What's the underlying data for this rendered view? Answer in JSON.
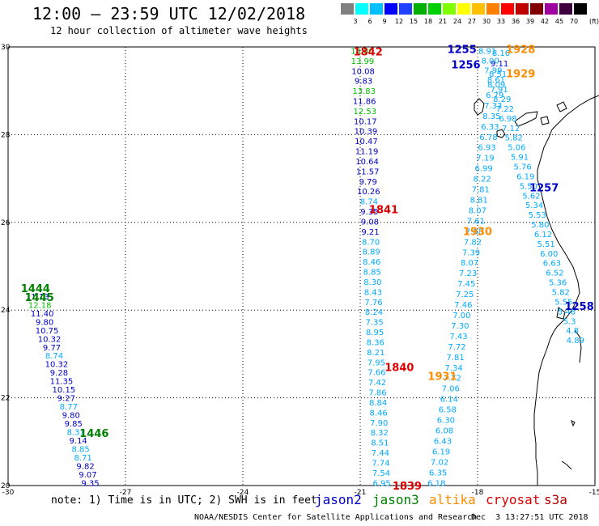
{
  "header": {
    "title": "12:00 – 23:59 UTC 12/02/2018",
    "subtitle": "12 hour collection of altimeter wave heights"
  },
  "scale": {
    "unit": "(ft)",
    "ticks": [
      "3",
      "6",
      "9",
      "12",
      "15",
      "18",
      "21",
      "24",
      "27",
      "30",
      "33",
      "36",
      "39",
      "42",
      "45",
      "70"
    ],
    "colors": [
      "#808080",
      "#00ffff",
      "#00c0ff",
      "#0000ff",
      "#2040ff",
      "#00b000",
      "#00d000",
      "#80ff00",
      "#ffff00",
      "#ffc000",
      "#ff8000",
      "#ff0000",
      "#c00000",
      "#800000",
      "#a000a0",
      "#400040",
      "#000000"
    ]
  },
  "axes": {
    "x_ticks": [
      "-30",
      "-27",
      "-24",
      "-21",
      "-18",
      "-15"
    ],
    "y_ticks": [
      "30",
      "28",
      "26",
      "24",
      "22",
      "20"
    ]
  },
  "chart_data": {
    "type": "map",
    "lon_range": [
      -30,
      -15
    ],
    "lat_range": [
      20,
      30
    ],
    "grid": "dotted",
    "colors": {
      "jason2": "#0000c8",
      "jason3": "#008000",
      "altika": "#ff8c00",
      "cryosat": "#dc0000",
      "s3a": "#b40000",
      "swh_low": "#00aaff",
      "swh_mid": "#0000c8",
      "swh_high": "#00c000"
    },
    "pass_labels": [
      {
        "text": "1842",
        "lon": -20.8,
        "lat": 29.9,
        "sat": "cryosat"
      },
      {
        "text": "1841",
        "lon": -20.4,
        "lat": 26.3,
        "sat": "cryosat"
      },
      {
        "text": "1840",
        "lon": -20.0,
        "lat": 22.7,
        "sat": "cryosat"
      },
      {
        "text": "1839",
        "lon": -19.8,
        "lat": 20.0,
        "sat": "cryosat"
      },
      {
        "text": "1255",
        "lon": -18.4,
        "lat": 29.95,
        "sat": "jason2"
      },
      {
        "text": "1256",
        "lon": -18.3,
        "lat": 29.6,
        "sat": "jason2"
      },
      {
        "text": "1257",
        "lon": -16.3,
        "lat": 26.8,
        "sat": "jason2"
      },
      {
        "text": "1258",
        "lon": -15.4,
        "lat": 24.1,
        "sat": "jason2"
      },
      {
        "text": "1928",
        "lon": -16.9,
        "lat": 29.95,
        "sat": "altika"
      },
      {
        "text": "1929",
        "lon": -16.9,
        "lat": 29.4,
        "sat": "altika"
      },
      {
        "text": "1930",
        "lon": -18.0,
        "lat": 25.8,
        "sat": "altika"
      },
      {
        "text": "1931",
        "lon": -18.9,
        "lat": 22.5,
        "sat": "altika"
      },
      {
        "text": "1444",
        "lon": -29.3,
        "lat": 24.5,
        "sat": "jason3"
      },
      {
        "text": "1445",
        "lon": -29.2,
        "lat": 24.3,
        "sat": "jason3"
      },
      {
        "text": "1446",
        "lon": -27.8,
        "lat": 21.2,
        "sat": "jason3"
      }
    ],
    "tracks": [
      {
        "name": "jason3 1444/1445/1446",
        "lon_start": -29.25,
        "lat_start": 24.3,
        "lon_end": -27.9,
        "lat_end": 20.05,
        "values": [
          "11.13",
          "12.18",
          "11.40",
          "9.80",
          "10.75",
          "10.32",
          "9.77",
          "8.74",
          "10.32",
          "9.28",
          "11.35",
          "10.15",
          "9.27",
          "8.77",
          "9.80",
          "9.85",
          "8.31",
          "9.14",
          "8.85",
          "8.71",
          "9.82",
          "9.07",
          "9.35"
        ],
        "value_colors": [
          "mid",
          "high",
          "mid",
          "mid",
          "mid",
          "mid",
          "mid",
          "low",
          "mid",
          "mid",
          "mid",
          "mid",
          "mid",
          "low",
          "mid",
          "mid",
          "low",
          "mid",
          "low",
          "low",
          "mid",
          "mid",
          "mid"
        ]
      },
      {
        "name": "cryosat 1842-1839",
        "lon_start": -20.95,
        "lat_start": 29.9,
        "lon_end": -20.45,
        "lat_end": 20.05,
        "values": [
          "18.00",
          "13.99",
          "10.08",
          "9.83",
          "13.83",
          "11.86",
          "12.53",
          "10.17",
          "10.39",
          "10.47",
          "11.19",
          "10.64",
          "11.57",
          "9.79",
          "10.26",
          "8.74",
          "9.35",
          "9.08",
          "9.21",
          "8.70",
          "8.89",
          "8.46",
          "8.85",
          "8.30",
          "8.43",
          "7.76",
          "8.24",
          "7.35",
          "8.95",
          "8.36",
          "8.21",
          "7.95",
          "7.66",
          "7.42",
          "7.86",
          "8.84",
          "8.46",
          "7.90",
          "8.32",
          "8.51",
          "7.44",
          "7.74",
          "7.54",
          "6.95"
        ],
        "value_colors": [
          "high",
          "high",
          "mid",
          "mid",
          "high",
          "mid",
          "high",
          "mid",
          "mid",
          "mid",
          "mid",
          "mid",
          "mid",
          "mid",
          "mid",
          "low",
          "mid",
          "mid",
          "mid",
          "low",
          "low",
          "low",
          "low",
          "low",
          "low",
          "low",
          "low",
          "low",
          "low",
          "low",
          "low",
          "low",
          "low",
          "low",
          "low",
          "low",
          "low",
          "low",
          "low",
          "low",
          "low",
          "low",
          "low",
          "low"
        ]
      },
      {
        "name": "altika 1931-1928",
        "lon_start": -19.05,
        "lat_start": 20.05,
        "lon_end": -17.4,
        "lat_end": 29.85,
        "values": [
          "6.18",
          "6.35",
          "7.02",
          "6.19",
          "6.43",
          "6.08",
          "6.30",
          "6.58",
          "6.14",
          "7.06",
          "7.72",
          "7.34",
          "7.81",
          "7.72",
          "7.43",
          "7.30",
          "7.00",
          "7.46",
          "7.25",
          "7.45",
          "7.23",
          "8.07",
          "7.39",
          "7.82",
          "7.88",
          "7.61",
          "8.07",
          "8.81",
          "7.81",
          "8.22",
          "6.99",
          "7.19",
          "6.93",
          "6.78",
          "6.33",
          "8.35",
          "7.33",
          "6.79",
          "8.09",
          "8.51",
          "9.11",
          "8.16"
        ],
        "value_colors": [
          "low",
          "low",
          "low",
          "low",
          "low",
          "low",
          "low",
          "low",
          "low",
          "low",
          "low",
          "low",
          "low",
          "low",
          "low",
          "low",
          "low",
          "low",
          "low",
          "low",
          "low",
          "low",
          "low",
          "low",
          "low",
          "low",
          "low",
          "low",
          "low",
          "low",
          "low",
          "low",
          "low",
          "low",
          "low",
          "low",
          "low",
          "low",
          "low",
          "low",
          "mid",
          "low"
        ]
      },
      {
        "name": "jason2 1255-1258",
        "lon_start": -17.75,
        "lat_start": 29.9,
        "lon_end": -15.5,
        "lat_end": 23.3,
        "values": [
          "8.91",
          "8.00",
          "7.99",
          "8.61",
          "7.91",
          "8.29",
          "7.22",
          "6.98",
          "7.12",
          "5.82",
          "5.06",
          "5.91",
          "5.76",
          "6.19",
          "5.50",
          "5.62",
          "5.34",
          "5.53",
          "5.80",
          "6.12",
          "5.51",
          "6.00",
          "6.63",
          "6.52",
          "5.36",
          "5.82",
          "5.55",
          "5.48",
          "5.3",
          "4.8",
          "4.89"
        ],
        "value_colors": [
          "low",
          "low",
          "low",
          "low",
          "low",
          "low",
          "low",
          "low",
          "low",
          "low",
          "low",
          "low",
          "low",
          "low",
          "low",
          "low",
          "low",
          "low",
          "low",
          "low",
          "low",
          "low",
          "low",
          "low",
          "low",
          "low",
          "low",
          "low",
          "low",
          "low",
          "low"
        ]
      }
    ]
  },
  "footer": {
    "note": "note: 1) Time is in UTC; 2) SWH is in feet",
    "satellites": [
      {
        "label": "jason2",
        "color": "#0000c8"
      },
      {
        "label": "jason3",
        "color": "#008000"
      },
      {
        "label": "altika",
        "color": "#ff8c00"
      },
      {
        "label": "cryosat",
        "color": "#dc0000"
      },
      {
        "label": "s3a",
        "color": "#b40000"
      }
    ],
    "credit": "NOAA/NESDIS Center for Satellite Applications and Research",
    "timestamp": "Dec  3 13:27:51 UTC 2018"
  }
}
